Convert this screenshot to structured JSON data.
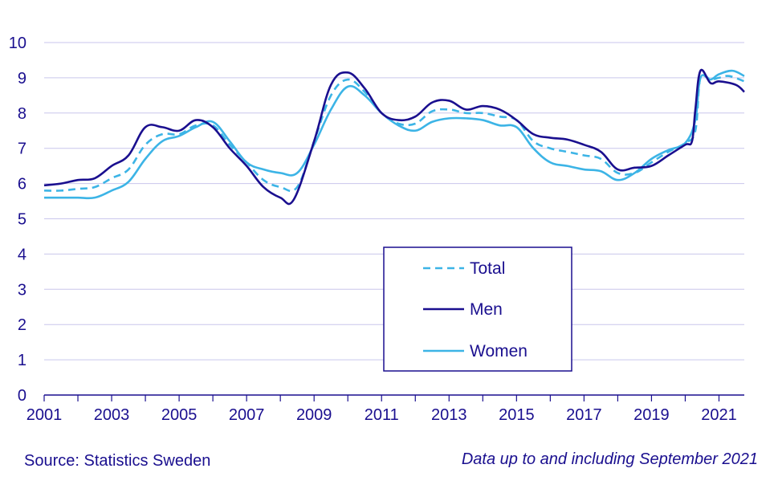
{
  "chart_data": {
    "type": "line",
    "title": "",
    "xlabel": "",
    "ylabel": "",
    "xlim": [
      2001,
      2021.75
    ],
    "ylim": [
      0,
      10
    ],
    "yticks": [
      0,
      1,
      2,
      3,
      4,
      5,
      6,
      7,
      8,
      9,
      10
    ],
    "xticks": [
      2001,
      2002,
      2003,
      2004,
      2005,
      2006,
      2007,
      2008,
      2009,
      2010,
      2011,
      2012,
      2013,
      2014,
      2015,
      2016,
      2017,
      2018,
      2019,
      2020,
      2021
    ],
    "xtick_labels": [
      "2001",
      "",
      "2003",
      "",
      "2005",
      "",
      "2007",
      "",
      "2009",
      "",
      "2011",
      "",
      "2013",
      "",
      "2015",
      "",
      "2017",
      "",
      "2019",
      "",
      "2021"
    ],
    "grid": true,
    "legend_position": "center-right",
    "series": [
      {
        "name": "Total",
        "style": "dashed",
        "color": "#3cb4e6",
        "points": [
          [
            2001,
            5.8
          ],
          [
            2001.5,
            5.8
          ],
          [
            2002,
            5.85
          ],
          [
            2002.5,
            5.9
          ],
          [
            2003,
            6.15
          ],
          [
            2003.5,
            6.4
          ],
          [
            2004,
            7.1
          ],
          [
            2004.5,
            7.4
          ],
          [
            2005,
            7.4
          ],
          [
            2005.5,
            7.65
          ],
          [
            2006,
            7.65
          ],
          [
            2006.5,
            7.1
          ],
          [
            2007,
            6.6
          ],
          [
            2007.5,
            6.1
          ],
          [
            2008,
            5.9
          ],
          [
            2008.5,
            5.9
          ],
          [
            2009,
            7.2
          ],
          [
            2009.5,
            8.5
          ],
          [
            2010,
            8.95
          ],
          [
            2010.5,
            8.6
          ],
          [
            2011,
            8.0
          ],
          [
            2011.5,
            7.7
          ],
          [
            2012,
            7.7
          ],
          [
            2012.5,
            8.05
          ],
          [
            2013,
            8.1
          ],
          [
            2013.5,
            8.0
          ],
          [
            2014,
            8.0
          ],
          [
            2014.5,
            7.9
          ],
          [
            2015,
            7.8
          ],
          [
            2015.5,
            7.2
          ],
          [
            2016,
            7.0
          ],
          [
            2016.5,
            6.9
          ],
          [
            2017,
            6.8
          ],
          [
            2017.5,
            6.7
          ],
          [
            2018,
            6.3
          ],
          [
            2018.5,
            6.3
          ],
          [
            2019,
            6.6
          ],
          [
            2019.5,
            6.9
          ],
          [
            2020,
            7.15
          ],
          [
            2020.3,
            7.5
          ],
          [
            2020.45,
            9.0
          ],
          [
            2020.75,
            8.95
          ],
          [
            2021,
            9.0
          ],
          [
            2021.3,
            9.05
          ],
          [
            2021.75,
            8.9
          ]
        ]
      },
      {
        "name": "Men",
        "style": "solid",
        "color": "#1a0f8f",
        "points": [
          [
            2001,
            5.95
          ],
          [
            2001.5,
            6.0
          ],
          [
            2002,
            6.1
          ],
          [
            2002.5,
            6.15
          ],
          [
            2003,
            6.5
          ],
          [
            2003.5,
            6.8
          ],
          [
            2004,
            7.6
          ],
          [
            2004.5,
            7.6
          ],
          [
            2005,
            7.5
          ],
          [
            2005.5,
            7.8
          ],
          [
            2006,
            7.6
          ],
          [
            2006.5,
            7.0
          ],
          [
            2007,
            6.5
          ],
          [
            2007.5,
            5.9
          ],
          [
            2008,
            5.6
          ],
          [
            2008.4,
            5.55
          ],
          [
            2009,
            7.2
          ],
          [
            2009.5,
            8.8
          ],
          [
            2010,
            9.15
          ],
          [
            2010.5,
            8.7
          ],
          [
            2011,
            8.0
          ],
          [
            2011.5,
            7.8
          ],
          [
            2012,
            7.9
          ],
          [
            2012.5,
            8.3
          ],
          [
            2013,
            8.35
          ],
          [
            2013.5,
            8.1
          ],
          [
            2014,
            8.2
          ],
          [
            2014.5,
            8.1
          ],
          [
            2015,
            7.8
          ],
          [
            2015.5,
            7.4
          ],
          [
            2016,
            7.3
          ],
          [
            2016.5,
            7.25
          ],
          [
            2017,
            7.1
          ],
          [
            2017.5,
            6.9
          ],
          [
            2018,
            6.4
          ],
          [
            2018.5,
            6.45
          ],
          [
            2019,
            6.5
          ],
          [
            2019.5,
            6.8
          ],
          [
            2020,
            7.1
          ],
          [
            2020.2,
            7.2
          ],
          [
            2020.3,
            8.1
          ],
          [
            2020.45,
            9.2
          ],
          [
            2020.75,
            8.85
          ],
          [
            2021,
            8.9
          ],
          [
            2021.5,
            8.8
          ],
          [
            2021.75,
            8.6
          ]
        ]
      },
      {
        "name": "Women",
        "style": "solid",
        "color": "#3cb4e6",
        "points": [
          [
            2001,
            5.6
          ],
          [
            2001.5,
            5.6
          ],
          [
            2002,
            5.6
          ],
          [
            2002.5,
            5.6
          ],
          [
            2003,
            5.8
          ],
          [
            2003.5,
            6.05
          ],
          [
            2004,
            6.7
          ],
          [
            2004.5,
            7.2
          ],
          [
            2005,
            7.35
          ],
          [
            2005.5,
            7.6
          ],
          [
            2006,
            7.75
          ],
          [
            2006.5,
            7.2
          ],
          [
            2007,
            6.6
          ],
          [
            2007.5,
            6.4
          ],
          [
            2008,
            6.3
          ],
          [
            2008.5,
            6.3
          ],
          [
            2009,
            7.1
          ],
          [
            2009.5,
            8.1
          ],
          [
            2010,
            8.75
          ],
          [
            2010.5,
            8.5
          ],
          [
            2011,
            8.0
          ],
          [
            2011.5,
            7.65
          ],
          [
            2012,
            7.5
          ],
          [
            2012.5,
            7.75
          ],
          [
            2013,
            7.85
          ],
          [
            2013.5,
            7.85
          ],
          [
            2014,
            7.8
          ],
          [
            2014.5,
            7.65
          ],
          [
            2015,
            7.6
          ],
          [
            2015.5,
            7.0
          ],
          [
            2016,
            6.6
          ],
          [
            2016.5,
            6.5
          ],
          [
            2017,
            6.4
          ],
          [
            2017.5,
            6.35
          ],
          [
            2018,
            6.1
          ],
          [
            2018.5,
            6.3
          ],
          [
            2019,
            6.7
          ],
          [
            2019.5,
            6.95
          ],
          [
            2020,
            7.15
          ],
          [
            2020.3,
            7.8
          ],
          [
            2020.45,
            9.0
          ],
          [
            2020.75,
            8.95
          ],
          [
            2021,
            9.1
          ],
          [
            2021.4,
            9.2
          ],
          [
            2021.75,
            9.05
          ]
        ]
      }
    ]
  },
  "footer": {
    "source": "Source: Statistics Sweden",
    "note": "Data up to and including September 2021"
  }
}
